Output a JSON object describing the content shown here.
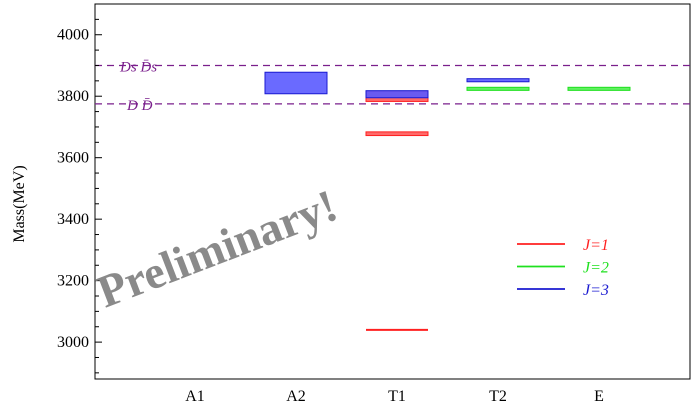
{
  "chart_data": {
    "type": "bar",
    "categories": [
      "A1",
      "A2",
      "T1",
      "T2",
      "E"
    ],
    "ylabel": "Mass(MeV)",
    "xlabel": "",
    "title": "",
    "ylim": [
      2880,
      4100
    ],
    "yticks": [
      3000,
      3200,
      3400,
      3600,
      3800,
      4000
    ],
    "thresholds": [
      {
        "label": "D_s D̄_s",
        "display": "Ds D̄s",
        "value": 3900
      },
      {
        "label": "D D̄",
        "display": "D D̄",
        "value": 3775
      }
    ],
    "threshold_color": "#7a1f8c",
    "series": [
      {
        "name": "J=1",
        "color": "#ff2020",
        "fill": "#ff5a5a"
      },
      {
        "name": "J=2",
        "color": "#1fe01f",
        "fill": "#4ff04f"
      },
      {
        "name": "J=3",
        "color": "#1a1ad0",
        "fill": "#5a5aff"
      }
    ],
    "levels": [
      {
        "category": "A2",
        "series": "J=3",
        "low": 3808,
        "high": 3878
      },
      {
        "category": "T1",
        "series": "J=1",
        "low": 3783,
        "high": 3815
      },
      {
        "category": "T1",
        "series": "J=3",
        "low": 3795,
        "high": 3818
      },
      {
        "category": "T1",
        "series": "J=1",
        "low": 3672,
        "high": 3684
      },
      {
        "category": "T1",
        "series": "J=1",
        "value": 3040
      },
      {
        "category": "T2",
        "series": "J=3",
        "low": 3847,
        "high": 3857
      },
      {
        "category": "T2",
        "series": "J=2",
        "low": 3819,
        "high": 3829
      },
      {
        "category": "E",
        "series": "J=2",
        "low": 3819,
        "high": 3829
      }
    ],
    "legend": {
      "placement": "right",
      "entries": [
        {
          "label": "J=1",
          "letter": "J",
          "suffix": "=1",
          "color": "#ff2020"
        },
        {
          "label": "J=2",
          "letter": "J",
          "suffix": "=2",
          "color": "#1fe01f"
        },
        {
          "label": "J=3",
          "letter": "J",
          "suffix": "=3",
          "color": "#1a1ad0"
        }
      ]
    },
    "watermark": "Preliminary!",
    "grid": false
  }
}
